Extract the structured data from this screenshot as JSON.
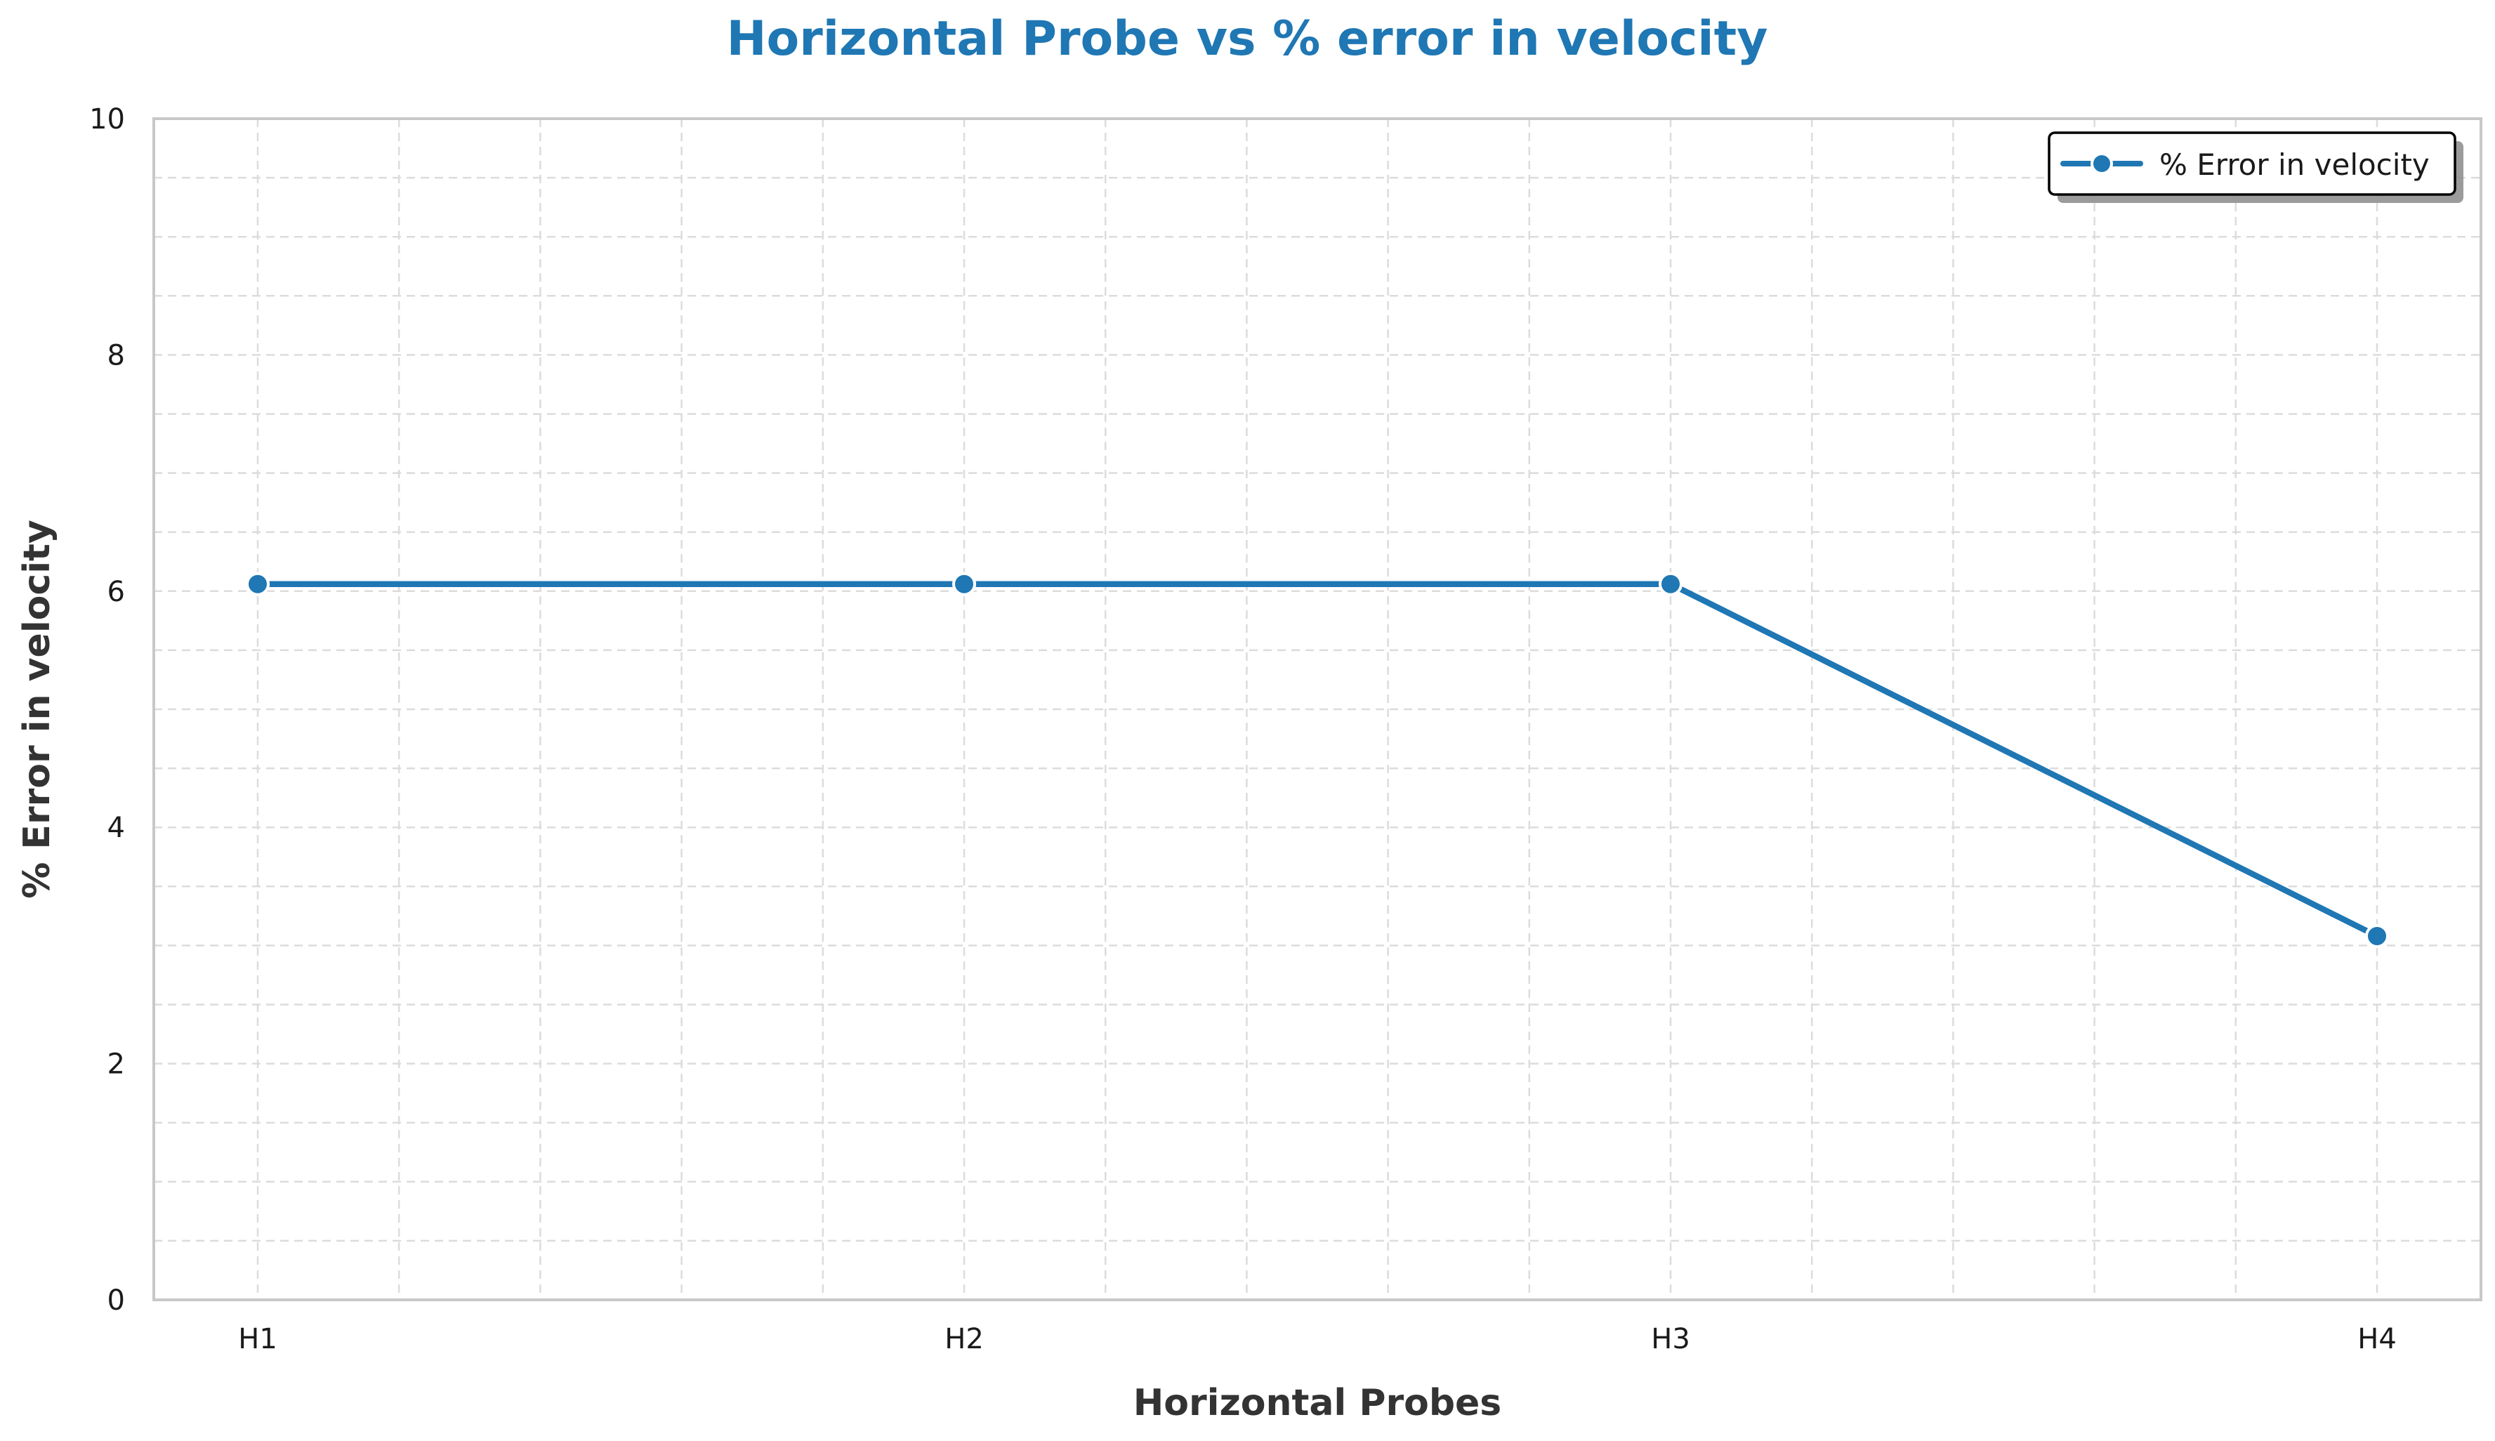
{
  "chart_data": {
    "type": "line",
    "title": "Horizontal Probe vs % error in velocity",
    "xlabel": "Horizontal Probes",
    "ylabel": "% Error in velocity",
    "categories": [
      "H1",
      "H2",
      "H3",
      "H4"
    ],
    "series": [
      {
        "name": "% Error in velocity",
        "values": [
          6.06,
          6.06,
          6.06,
          3.08
        ],
        "color": "#1f77b4"
      }
    ],
    "ylim": [
      0,
      10
    ],
    "yticks": [
      "0",
      "2",
      "4",
      "6",
      "8",
      "10"
    ],
    "grid": true,
    "legend_position": "top-right"
  },
  "colors": {
    "title": "#1f77b4",
    "line": "#1f77b4",
    "axis_text": "#262626",
    "grid": "#d9d9d9",
    "spine": "#c8c8c8"
  }
}
